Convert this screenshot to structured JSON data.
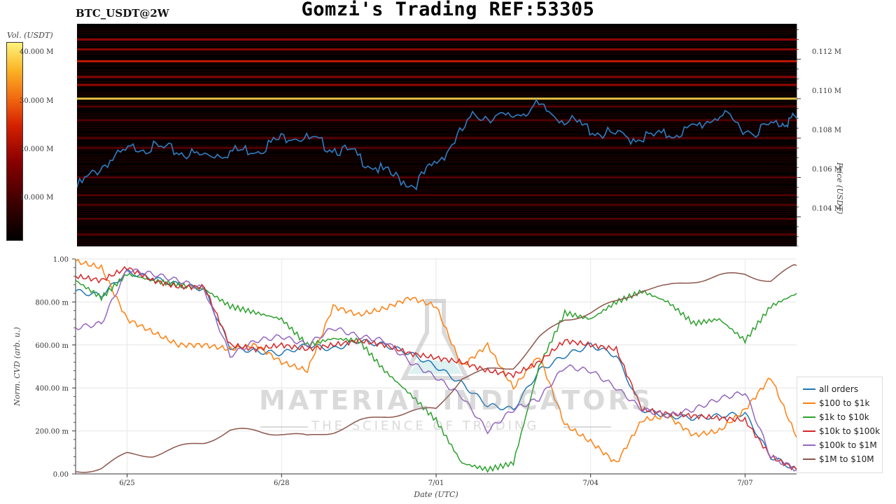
{
  "header": {
    "symbol": "BTC_USDT@2W",
    "title": "Gomzi's Trading REF:53305"
  },
  "watermark": {
    "title": "MATERIAL INDICATORS",
    "subtitle": "THE SCIENCE OF TRADING"
  },
  "colors": {
    "price_line": "#2f7ec3",
    "heatmap_bg": "#050000",
    "grid": "#e6e6e6"
  },
  "chart_data": [
    {
      "type": "heatmap",
      "colorbar_label": "Vol. (USDT)",
      "colorbar_ticks": [
        "40.000 M",
        "30.000 M",
        "20.000 M",
        "10.000 M"
      ],
      "ylabel": "Price (USDT)",
      "price_ticks": [
        "0.112 M",
        "0.110 M",
        "0.108 M",
        "0.106 M",
        "0.104 M"
      ],
      "price_series_x": [
        0,
        2,
        4,
        6,
        8,
        10,
        12,
        14,
        16,
        18,
        20,
        22,
        24,
        26,
        28,
        30,
        32,
        34,
        36,
        38,
        40,
        42,
        44,
        46,
        47
      ],
      "price_series_y": [
        105.5,
        106.8,
        107.6,
        107.4,
        107.1,
        107.3,
        107.5,
        108.2,
        107.7,
        107.2,
        106.3,
        105.6,
        107.2,
        109.2,
        109.0,
        109.6,
        108.9,
        108.3,
        108.0,
        108.1,
        108.4,
        109.2,
        108.3,
        108.8,
        109.0
      ],
      "price_range": [
        102.5,
        113.8
      ],
      "liquidity_levels": [
        {
          "price": 113.0,
          "intensity": 0.45
        },
        {
          "price": 112.5,
          "intensity": 0.4
        },
        {
          "price": 111.9,
          "intensity": 0.55
        },
        {
          "price": 111.1,
          "intensity": 0.5
        },
        {
          "price": 110.7,
          "intensity": 0.45
        },
        {
          "price": 110.0,
          "intensity": 0.95
        },
        {
          "price": 109.6,
          "intensity": 0.35
        },
        {
          "price": 108.9,
          "intensity": 0.3
        },
        {
          "price": 108.0,
          "intensity": 0.35
        },
        {
          "price": 107.5,
          "intensity": 0.3
        },
        {
          "price": 106.0,
          "intensity": 0.25
        },
        {
          "price": 105.1,
          "intensity": 0.3
        },
        {
          "price": 104.6,
          "intensity": 0.2
        },
        {
          "price": 103.9,
          "intensity": 0.25
        },
        {
          "price": 103.1,
          "intensity": 0.2
        }
      ]
    },
    {
      "type": "line",
      "ylabel": "Norm. CVD (arb. u.)",
      "xlabel": "Date (UTC)",
      "ylim": [
        0,
        1
      ],
      "y_ticks": [
        "1.00",
        "800.00 m",
        "600.00 m",
        "400.00 m",
        "200.00 m",
        "0.00"
      ],
      "x_ticks": [
        "6/25",
        "6/28",
        "7/01",
        "7/04",
        "7/07"
      ],
      "x_tick_positions": [
        2,
        8,
        14,
        20,
        26
      ],
      "x": [
        0,
        1,
        2,
        3,
        4,
        5,
        6,
        7,
        8,
        9,
        10,
        11,
        12,
        13,
        14,
        15,
        16,
        17,
        18,
        19,
        20,
        21,
        22,
        23,
        24,
        25,
        26,
        27,
        28
      ],
      "series": [
        {
          "name": "all orders",
          "color": "#1f77b4",
          "values": [
            0.85,
            0.83,
            0.94,
            0.91,
            0.88,
            0.86,
            0.59,
            0.57,
            0.56,
            0.6,
            0.58,
            0.62,
            0.6,
            0.56,
            0.5,
            0.42,
            0.32,
            0.3,
            0.48,
            0.55,
            0.6,
            0.55,
            0.3,
            0.27,
            0.26,
            0.27,
            0.28,
            0.08,
            0.02
          ]
        },
        {
          "name": "$100 to $1k",
          "color": "#ff7f0e",
          "values": [
            0.99,
            0.96,
            0.72,
            0.66,
            0.6,
            0.6,
            0.58,
            0.6,
            0.52,
            0.48,
            0.78,
            0.74,
            0.77,
            0.82,
            0.78,
            0.5,
            0.6,
            0.4,
            0.55,
            0.23,
            0.15,
            0.05,
            0.25,
            0.27,
            0.18,
            0.2,
            0.3,
            0.45,
            0.17
          ]
        },
        {
          "name": "$1k to $10k",
          "color": "#2ca02c",
          "values": [
            0.9,
            0.82,
            0.93,
            0.9,
            0.88,
            0.86,
            0.78,
            0.75,
            0.72,
            0.6,
            0.63,
            0.62,
            0.48,
            0.37,
            0.25,
            0.05,
            0.02,
            0.05,
            0.5,
            0.75,
            0.72,
            0.8,
            0.85,
            0.8,
            0.7,
            0.72,
            0.62,
            0.78,
            0.84
          ]
        },
        {
          "name": "$10k to $100k",
          "color": "#d62728",
          "values": [
            0.92,
            0.9,
            0.96,
            0.9,
            0.87,
            0.87,
            0.6,
            0.58,
            0.6,
            0.58,
            0.6,
            0.62,
            0.6,
            0.56,
            0.54,
            0.52,
            0.48,
            0.46,
            0.52,
            0.62,
            0.6,
            0.58,
            0.3,
            0.28,
            0.27,
            0.26,
            0.25,
            0.08,
            0.02
          ]
        },
        {
          "name": "$100k to $1M",
          "color": "#9467bd",
          "values": [
            0.68,
            0.7,
            0.95,
            0.93,
            0.9,
            0.86,
            0.55,
            0.62,
            0.64,
            0.6,
            0.68,
            0.64,
            0.62,
            0.52,
            0.45,
            0.36,
            0.2,
            0.3,
            0.35,
            0.5,
            0.48,
            0.4,
            0.3,
            0.27,
            0.3,
            0.35,
            0.38,
            0.08,
            0.02
          ]
        },
        {
          "name": "$1M to $10M",
          "color": "#8c564b",
          "values": [
            0.01,
            0.03,
            0.09,
            0.09,
            0.12,
            0.15,
            0.2,
            0.2,
            0.19,
            0.17,
            0.2,
            0.24,
            0.27,
            0.29,
            0.3,
            0.45,
            0.48,
            0.5,
            0.63,
            0.72,
            0.75,
            0.8,
            0.86,
            0.87,
            0.9,
            0.92,
            0.93,
            0.9,
            0.97
          ]
        }
      ]
    }
  ]
}
